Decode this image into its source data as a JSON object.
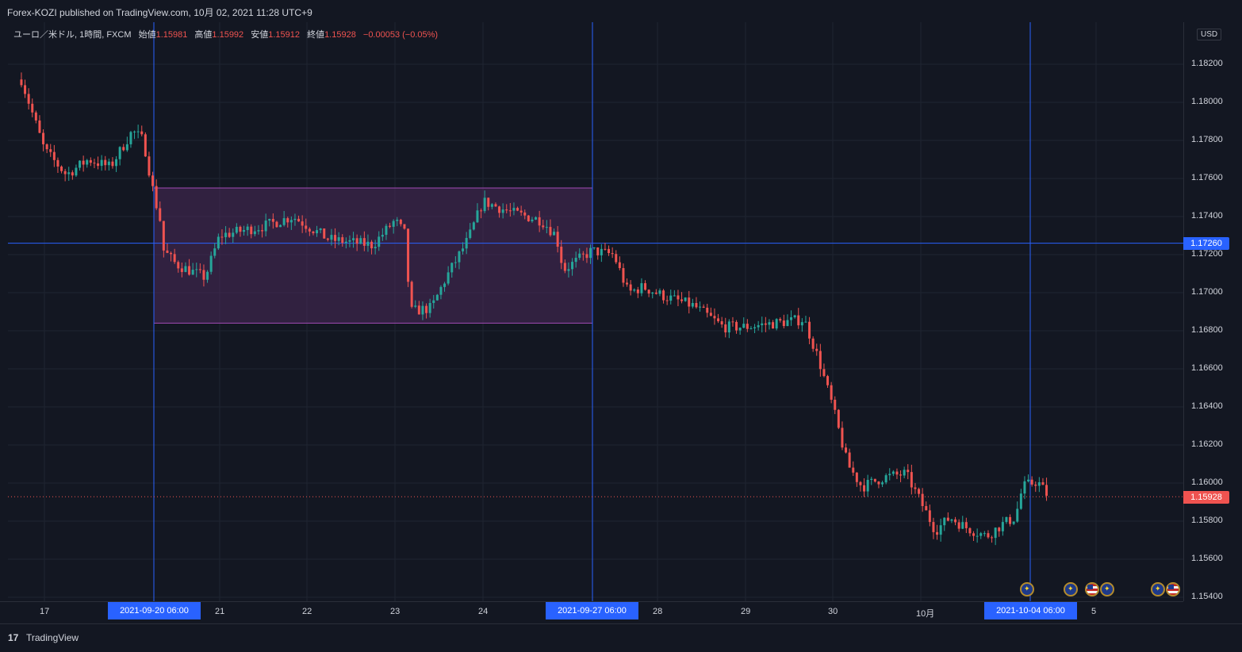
{
  "header": {
    "title": "Forex-KOZI published on TradingView.com, 10月 02, 2021 11:28 UTC+9"
  },
  "legend": {
    "symbol": "ユーロ／米ドル, 1時間, FXCM",
    "open_label": "始値",
    "open": "1.15981",
    "high_label": "高値",
    "high": "1.15992",
    "low_label": "安値",
    "low": "1.15912",
    "close_label": "終値",
    "close": "1.15928",
    "change": "−0.00053 (−0.05%)"
  },
  "currency_label": "USD",
  "price_axis": {
    "labels": [
      "1.18200",
      "1.18000",
      "1.17800",
      "1.17600",
      "1.17400",
      "1.17200",
      "1.17000",
      "1.16800",
      "1.16600",
      "1.16400",
      "1.16200",
      "1.16000",
      "1.15800",
      "1.15600",
      "1.15400"
    ],
    "crosshair_price": "1.17260",
    "last_price": "1.15928"
  },
  "time_axis": {
    "labels": [
      "17",
      "21",
      "22",
      "23",
      "24",
      "28",
      "29",
      "30",
      "10月",
      "5"
    ],
    "tags": [
      "2021-09-20  06:00",
      "2021-09-27  06:00",
      "2021-10-04  06:00"
    ]
  },
  "footer": {
    "brand": "TradingView",
    "logo": "17"
  },
  "colors": {
    "up": "#26a69a",
    "down": "#ef5350",
    "crosshair": "#2962ff",
    "box_fill": "#4a2a5a",
    "box_stroke": "#a24bb6"
  },
  "chart_data": {
    "type": "candlestick",
    "symbol": "EUR/USD",
    "timeframe": "1H",
    "ylim": [
      1.154,
      1.183
    ],
    "range_box": {
      "from": "2021-09-20 06:00",
      "to": "2021-09-27 06:00",
      "high": 1.1755,
      "low": 1.1684
    },
    "markers": [
      "2021-09-20 06:00",
      "2021-09-27 06:00",
      "2021-10-04 06:00"
    ],
    "horizontal_line": 1.1726,
    "last_price": 1.15928,
    "approx_close_path": [
      {
        "t": "09-16 18:00",
        "c": 1.1812
      },
      {
        "t": "09-17 00:00",
        "c": 1.1775
      },
      {
        "t": "09-17 06:00",
        "c": 1.1762
      },
      {
        "t": "09-17 12:00",
        "c": 1.177
      },
      {
        "t": "09-17 18:00",
        "c": 1.1766
      },
      {
        "t": "09-18 00:00",
        "c": 1.1785
      },
      {
        "t": "09-18 03:00",
        "c": 1.178
      },
      {
        "t": "09-18 06:00",
        "c": 1.175
      },
      {
        "t": "09-18 08:00",
        "c": 1.1735
      },
      {
        "t": "09-20 06:00",
        "c": 1.1728
      },
      {
        "t": "09-20 12:00",
        "c": 1.1715
      },
      {
        "t": "09-20 20:00",
        "c": 1.1708
      },
      {
        "t": "09-21 00:00",
        "c": 1.173
      },
      {
        "t": "09-21 12:00",
        "c": 1.1735
      },
      {
        "t": "09-21 20:00",
        "c": 1.174
      },
      {
        "t": "09-22 06:00",
        "c": 1.1728
      },
      {
        "t": "09-22 18:00",
        "c": 1.1725
      },
      {
        "t": "09-23 00:00",
        "c": 1.1738
      },
      {
        "t": "09-23 03:00",
        "c": 1.173
      },
      {
        "t": "09-23 04:00",
        "c": 1.169
      },
      {
        "t": "09-23 10:00",
        "c": 1.1692
      },
      {
        "t": "09-23 14:00",
        "c": 1.1708
      },
      {
        "t": "09-23 20:00",
        "c": 1.1728
      },
      {
        "t": "09-24 00:00",
        "c": 1.1748
      },
      {
        "t": "09-24 08:00",
        "c": 1.1742
      },
      {
        "t": "09-24 16:00",
        "c": 1.1738
      },
      {
        "t": "09-24 20:00",
        "c": 1.173
      },
      {
        "t": "09-24 22:00",
        "c": 1.1712
      },
      {
        "t": "09-27 06:00",
        "c": 1.1722
      },
      {
        "t": "09-27 12:00",
        "c": 1.172
      },
      {
        "t": "09-27 16:00",
        "c": 1.17
      },
      {
        "t": "09-27 20:00",
        "c": 1.1703
      },
      {
        "t": "09-28 02:00",
        "c": 1.1698
      },
      {
        "t": "09-28 10:00",
        "c": 1.1693
      },
      {
        "t": "09-28 18:00",
        "c": 1.1682
      },
      {
        "t": "09-29 00:00",
        "c": 1.1682
      },
      {
        "t": "09-29 08:00",
        "c": 1.1684
      },
      {
        "t": "09-29 16:00",
        "c": 1.1686
      },
      {
        "t": "09-29 20:00",
        "c": 1.1665
      },
      {
        "t": "09-30 00:00",
        "c": 1.164
      },
      {
        "t": "09-30 04:00",
        "c": 1.161
      },
      {
        "t": "09-30 08:00",
        "c": 1.1598
      },
      {
        "t": "09-30 14:00",
        "c": 1.1603
      },
      {
        "t": "09-30 20:00",
        "c": 1.1605
      },
      {
        "t": "10-01 00:00",
        "c": 1.159
      },
      {
        "t": "10-01 04:00",
        "c": 1.1575
      },
      {
        "t": "10-01 08:00",
        "c": 1.1582
      },
      {
        "t": "10-01 12:00",
        "c": 1.1577
      },
      {
        "t": "10-01 18:00",
        "c": 1.1572
      },
      {
        "t": "10-01 22:00",
        "c": 1.1578
      },
      {
        "t": "10-02 02:00",
        "c": 1.1582
      },
      {
        "t": "10-02 04:00",
        "c": 1.1598
      },
      {
        "t": "10-02 08:00",
        "c": 1.1601
      },
      {
        "t": "10-02 11:00",
        "c": 1.1593
      }
    ]
  }
}
